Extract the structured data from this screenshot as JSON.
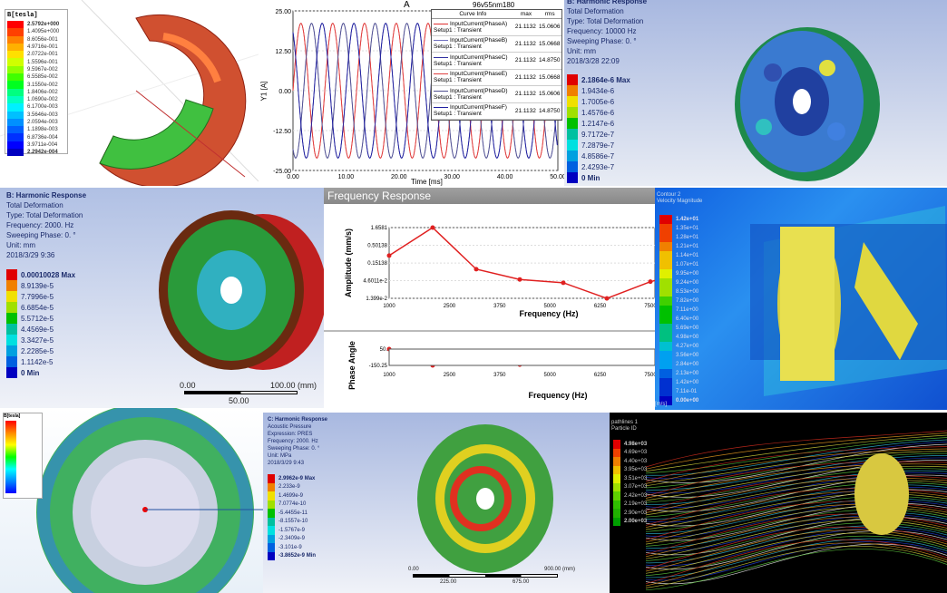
{
  "p1": {
    "legend_title": "B[tesla]",
    "values": [
      "2.5792e+000",
      "1.4095e+000",
      "8.6056e-001",
      "4.9716e-001",
      "2.0722e-001",
      "1.5596e-001",
      "9.5967e-002",
      "6.5585e-002",
      "3.1550e-002",
      "1.8406e-002",
      "1.0690e-002",
      "6.1700e-003",
      "3.5646e-003",
      "2.0594e-003",
      "1.1898e-003",
      "6.8736e-004",
      "3.9711e-004",
      "2.2942e-004"
    ],
    "colors": [
      "#ff0000",
      "#ff4000",
      "#ff8000",
      "#ffb000",
      "#ffe000",
      "#d0ff00",
      "#90ff00",
      "#40ff00",
      "#00ff20",
      "#00ff80",
      "#00ffc0",
      "#00f0ff",
      "#00c0ff",
      "#0090ff",
      "#0060ff",
      "#0030ff",
      "#0000ff",
      "#0000c0"
    ]
  },
  "p2": {
    "title": "A",
    "project": "96v55nm180",
    "ylabel": "Y1 [A]",
    "xlabel": "Time [ms]",
    "legend_headers": [
      "Curve Info",
      "max",
      "rms"
    ],
    "legend_rows": [
      {
        "curve": "InputCurrent(PhaseA)",
        "setup": "Setup1 : Transient",
        "max": "21.1132",
        "rms": "15.0606",
        "color": "#e03030"
      },
      {
        "curve": "InputCurrent(PhaseB)",
        "setup": "Setup1 : Transient",
        "max": "21.1132",
        "rms": "15.0668",
        "color": "#7070c0"
      },
      {
        "curve": "InputCurrent(PhaseC)",
        "setup": "Setup1 : Transient",
        "max": "21.1132",
        "rms": "14.8750",
        "color": "#3030a0"
      },
      {
        "curve": "InputCurrent(PhaseE)",
        "setup": "Setup1 : Transient",
        "max": "21.1132",
        "rms": "15.0668",
        "color": "#e04040"
      },
      {
        "curve": "InputCurrent(PhaseD)",
        "setup": "Setup1 : Transient",
        "max": "21.1132",
        "rms": "15.0606",
        "color": "#505090"
      },
      {
        "curve": "InputCurrent(PhaseF)",
        "setup": "Setup1 : Transient",
        "max": "21.1132",
        "rms": "14.8750",
        "color": "#2020a0"
      }
    ]
  },
  "p3": {
    "lines": [
      "B: Harmonic Response",
      "Total Deformation",
      "Type: Total Deformation",
      "Frequency: 10000 Hz",
      "Sweeping Phase: 0. °",
      "Unit: mm",
      "2018/3/28 22:09"
    ],
    "values": [
      "2.1864e-6 Max",
      "1.9434e-6",
      "1.7005e-6",
      "1.4576e-6",
      "1.2147e-6",
      "9.7172e-7",
      "7.2879e-7",
      "4.8586e-7",
      "2.4293e-7",
      "0 Min"
    ]
  },
  "p4": {
    "lines": [
      "B: Harmonic Response",
      "Total Deformation",
      "Type: Total Deformation",
      "Frequency: 2000. Hz",
      "Sweeping Phase: 0. °",
      "Unit: mm",
      "2018/3/29 9:36"
    ],
    "values": [
      "0.00010028 Max",
      "8.9139e-5",
      "7.7996e-5",
      "6.6854e-5",
      "5.5712e-5",
      "4.4569e-5",
      "3.3427e-5",
      "2.2285e-5",
      "1.1142e-5",
      "0 Min"
    ],
    "scale": {
      "start": "0.00",
      "end": "100.00 (mm)",
      "mid": "50.00"
    }
  },
  "p5": {
    "header": "Frequency Response",
    "xlabel": "Frequency (Hz)"
  },
  "p6": {
    "legend_title": "Contour 2",
    "legend_subtitle": "Velocity Magnitude",
    "values": [
      "1.42e+01",
      "1.35e+01",
      "1.28e+01",
      "1.21e+01",
      "1.14e+01",
      "1.07e+01",
      "9.95e+00",
      "9.24e+00",
      "8.53e+00",
      "7.82e+00",
      "7.11e+00",
      "6.40e+00",
      "5.69e+00",
      "4.98e+00",
      "4.27e+00",
      "3.56e+00",
      "2.84e+00",
      "2.13e+00",
      "1.42e+00",
      "7.11e-01",
      "0.00e+00"
    ],
    "unit": "[m/s]"
  },
  "p7": {
    "legend_title": "B[tesla]"
  },
  "p8": {
    "lines": [
      "C: Harmonic Response",
      "Acoustic Pressure",
      "Expression: PRES",
      "Frequency: 2000. Hz",
      "Sweeping Phase: 0. °",
      "Unit: MPa",
      "2018/3/29 9:43"
    ],
    "values": [
      "2.9962e-9 Max",
      "2.233e-9",
      "1.4699e-9",
      "7.0774e-10",
      "-5.4455e-11",
      "-8.1557e-10",
      "-1.5767e-9",
      "-2.3409e-9",
      "-3.101e-9",
      "-3.8652e-9 Min"
    ],
    "scale": {
      "start": "0.00",
      "end": "900.00 (mm)",
      "t1": "225.00",
      "t2": "675.00"
    }
  },
  "p9": {
    "legend_title": "pathlines 1",
    "legend_subtitle": "Particle ID",
    "values": [
      "4.98e+03",
      "4.69e+03",
      "4.40e+03",
      "3.95e+03",
      "3.51e+03",
      "3.07e+03",
      "2.42e+03",
      "2.19e+03",
      "2.90e+03",
      "2.00e+03"
    ]
  },
  "chart_data": [
    {
      "type": "line",
      "title": "A",
      "xlabel": "Time [ms]",
      "ylabel": "Y1 [A]",
      "xlim": [
        0,
        50
      ],
      "ylim": [
        -25,
        25
      ],
      "xticks": [
        "0.00",
        "10.00",
        "20.00",
        "30.00",
        "40.00",
        "50.00"
      ],
      "yticks": [
        "25.00",
        "12.50",
        "0.00",
        "-12.50",
        "-25.00"
      ],
      "series_form": "sinusoid",
      "amplitude": 21.1132,
      "period_ms": 6,
      "series": [
        {
          "name": "InputCurrent(PhaseA)",
          "phase_deg": 0
        },
        {
          "name": "InputCurrent(PhaseB)",
          "phase_deg": 120
        },
        {
          "name": "InputCurrent(PhaseC)",
          "phase_deg": 240
        },
        {
          "name": "InputCurrent(PhaseE)",
          "phase_deg": 0
        },
        {
          "name": "InputCurrent(PhaseD)",
          "phase_deg": 120
        },
        {
          "name": "InputCurrent(PhaseF)",
          "phase_deg": 240
        }
      ]
    },
    {
      "type": "line",
      "xlabel": "Frequency (Hz)",
      "ylabel": "Amplitude (mm/s)",
      "yscale": "log",
      "grid": true,
      "xticks": [
        "1000",
        "2500",
        "3750",
        "5000",
        "6250",
        "7500"
      ],
      "yticks": [
        "1.6581",
        "0.50138",
        "0.15138",
        "4.6011e-2",
        "1.399e-2"
      ],
      "x": [
        1000,
        2083,
        3167,
        4250,
        5333,
        6417,
        7500,
        8583
      ],
      "y": [
        0.25,
        1.6581,
        0.1,
        0.05,
        0.04,
        0.0139,
        0.043,
        0.09
      ],
      "color": "#e02020"
    },
    {
      "type": "line",
      "xlabel": "Frequency (Hz)",
      "ylabel": "Phase Angle",
      "ylim": [
        -150.25,
        50
      ],
      "xticks": [
        "1000",
        "2500",
        "3750",
        "5000",
        "6250",
        "7500"
      ],
      "yticks": [
        "50.",
        "-150.25"
      ],
      "x": [
        1000,
        2083,
        3167,
        4250,
        5333,
        6417,
        7500,
        8583
      ],
      "y": [
        50,
        -150,
        -95,
        -140,
        -125,
        -120,
        -105,
        -110
      ],
      "color": "#e02020"
    }
  ]
}
